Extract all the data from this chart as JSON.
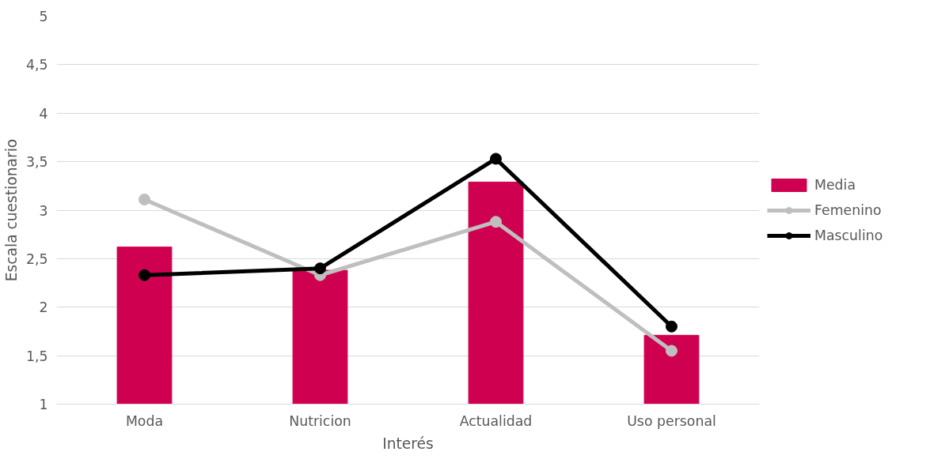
{
  "chart_data": {
    "type": "bar",
    "xlabel": "Interés",
    "ylabel": "Escala cuestionario",
    "categories": [
      "Moda",
      "Nutricion",
      "Actualidad",
      "Uso personal"
    ],
    "series": [
      {
        "name": "Media",
        "color": "#d00050",
        "values": [
          2.62,
          2.38,
          3.29,
          1.71
        ]
      },
      {
        "name": "Femenino",
        "type": "line",
        "color": "#bfbfbf",
        "marker": "circle",
        "values": [
          3.11,
          2.33,
          2.88,
          1.55
        ]
      },
      {
        "name": "Masculino",
        "type": "line",
        "color": "#000000",
        "marker": "circle",
        "values": [
          2.33,
          2.4,
          3.53,
          1.8
        ]
      }
    ],
    "ylim": [
      1,
      5
    ],
    "yticks": [
      1,
      {
        "value": 1.5,
        "label": "1,5"
      },
      2,
      {
        "value": 2.5,
        "label": "2,5"
      },
      3,
      {
        "value": 3.5,
        "label": "3,5"
      },
      4,
      {
        "value": 4.5,
        "label": "4,5"
      },
      5
    ],
    "grid": "y",
    "legend": "right",
    "line_style": "solid"
  }
}
